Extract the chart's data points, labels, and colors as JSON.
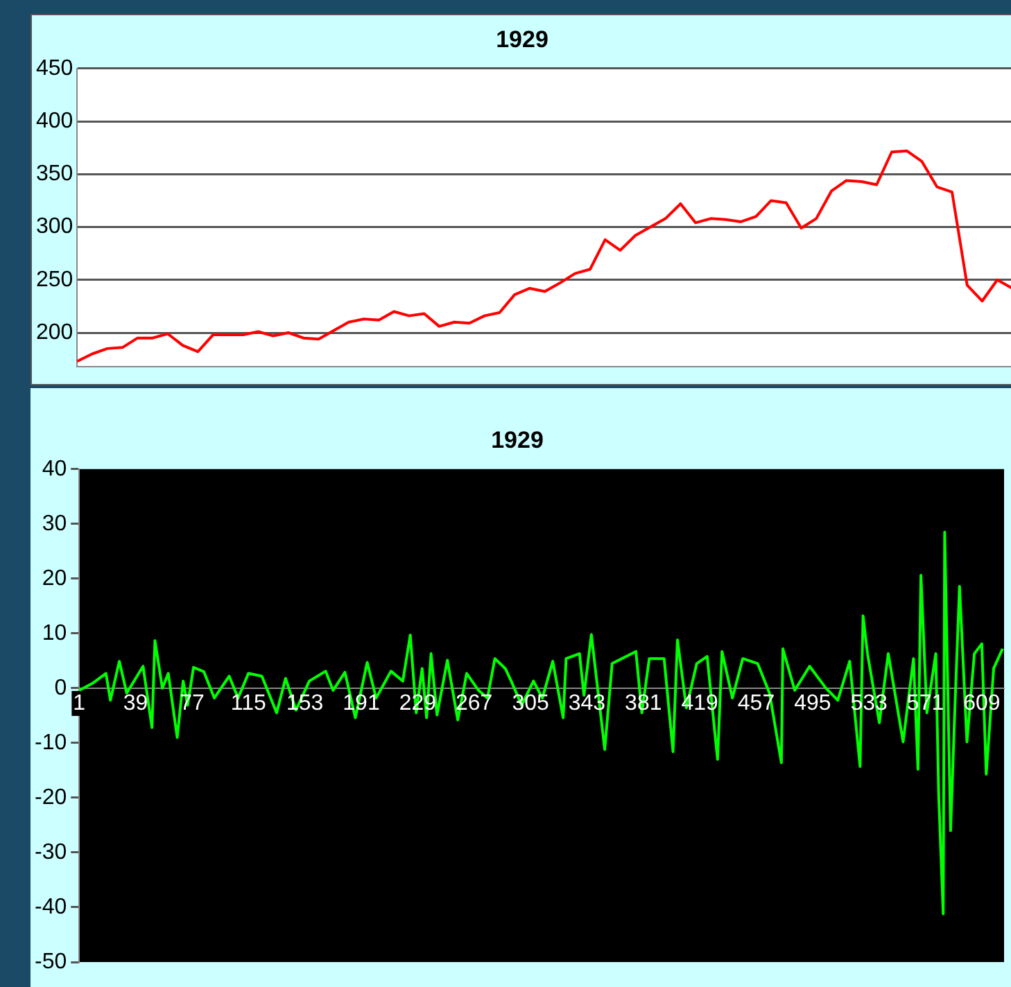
{
  "chart_data": [
    {
      "type": "line",
      "title": "1929",
      "tick_labels": "y",
      "grid": "y",
      "ylim": [
        168,
        450
      ],
      "yticks": [
        200,
        250,
        300,
        350,
        400,
        450
      ],
      "categories": [
        null,
        null,
        null,
        null,
        null,
        null,
        null,
        null,
        null,
        null,
        null,
        null,
        null,
        null,
        null,
        null,
        null,
        null,
        null,
        null,
        null,
        null,
        null,
        null,
        null,
        null,
        null,
        null,
        null,
        null,
        null,
        null,
        null,
        null,
        null,
        null,
        null,
        null,
        null,
        null,
        null,
        null,
        null,
        null,
        null,
        null,
        null,
        null,
        null,
        null,
        null,
        null,
        null,
        null,
        null,
        null,
        null,
        null,
        null,
        null,
        null,
        null,
        null
      ],
      "series": [
        {
          "color": "#ff0000",
          "values": [
            173,
            180,
            185,
            186,
            195,
            195,
            199,
            188,
            182,
            198,
            198,
            198,
            201,
            197,
            200,
            195,
            194,
            202,
            210,
            213,
            212,
            220,
            216,
            218,
            206,
            210,
            209,
            216,
            219,
            236,
            242,
            239,
            247,
            256,
            260,
            288,
            278,
            292,
            300,
            308,
            322,
            304,
            308,
            307,
            305,
            310,
            325,
            323,
            299,
            308,
            334,
            344,
            343,
            340,
            371,
            372,
            362,
            338,
            333,
            245,
            230,
            250,
            242
          ]
        }
      ]
    },
    {
      "type": "line",
      "title": "1929",
      "grid": false,
      "xlim": [
        1,
        624
      ],
      "ylim": [
        -50,
        40
      ],
      "yticks": [
        -50,
        -40,
        -30,
        -20,
        -10,
        0,
        10,
        20,
        30,
        40
      ],
      "xticks": [
        1,
        39,
        77,
        115,
        153,
        191,
        229,
        267,
        305,
        343,
        381,
        419,
        457,
        495,
        533,
        571,
        609
      ],
      "x": [
        1,
        10,
        19,
        22,
        28,
        33,
        44,
        50,
        52,
        57,
        61,
        67,
        71,
        74,
        78,
        85,
        92,
        102,
        108,
        115,
        124,
        134,
        140,
        147,
        156,
        167,
        172,
        180,
        187,
        195,
        201,
        211,
        219,
        224,
        228,
        232,
        235,
        238,
        242,
        249,
        256,
        262,
        270,
        276,
        281,
        288,
        292,
        299,
        307,
        313,
        320,
        327,
        329,
        338,
        341,
        346,
        355,
        360,
        376,
        380,
        385,
        395,
        401,
        404,
        410,
        417,
        424,
        431,
        434,
        441,
        448,
        458,
        466,
        474,
        475,
        483,
        493,
        504,
        512,
        520,
        527,
        529,
        532,
        540,
        546,
        556,
        563,
        566,
        568,
        572,
        578,
        580,
        583,
        584,
        588,
        591,
        594,
        599,
        604,
        609,
        612,
        617,
        623
      ],
      "series": [
        {
          "color": "#00ff00",
          "values": [
            -0.4,
            0.9,
            2.7,
            -2.2,
            4.9,
            -0.9,
            4.0,
            -7.2,
            8.7,
            0,
            2.7,
            -9.0,
            1.3,
            -3.1,
            3.8,
            3.0,
            -1.8,
            2.2,
            -1.8,
            2.7,
            2.2,
            -4.5,
            1.8,
            -4.0,
            1.3,
            3.1,
            -0.4,
            2.9,
            -5.4,
            4.7,
            -1.8,
            3.1,
            1.3,
            9.7,
            -4.5,
            3.6,
            -5.4,
            6.3,
            -4.9,
            5.1,
            -5.8,
            2.7,
            -0.4,
            -1.8,
            5.4,
            3.6,
            1.3,
            -3.1,
            1.3,
            -1.8,
            4.9,
            -5.4,
            5.4,
            6.3,
            -1.3,
            9.8,
            -11.2,
            4.5,
            6.7,
            -4.5,
            5.4,
            5.4,
            -11.6,
            8.8,
            -3.6,
            4.5,
            5.8,
            -13.0,
            6.7,
            -1.8,
            5.4,
            4.5,
            -0.9,
            -13.6,
            7.2,
            -0.4,
            4.0,
            0,
            -2.2,
            4.9,
            -14.3,
            13.2,
            6.3,
            -6.3,
            6.3,
            -9.8,
            5.4,
            -14.8,
            20.6,
            -4.5,
            6.3,
            -19.7,
            -41.2,
            28.5,
            -26.0,
            -2.7,
            18.6,
            -9.8,
            6.3,
            8.1,
            -15.7,
            3.6,
            7.2
          ]
        }
      ]
    }
  ]
}
